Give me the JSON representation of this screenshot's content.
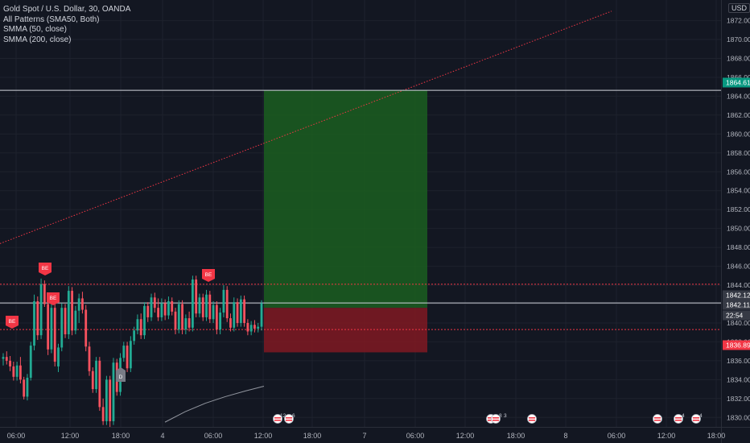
{
  "header": {
    "title": "Gold Spot / U.S. Dollar, 30, OANDA",
    "indicators": [
      "All Patterns (SMA50, Both)",
      "SMMA (50, close)",
      "SMMA (200, close)"
    ],
    "currency": "USD"
  },
  "chart_data": {
    "type": "candlestick",
    "symbol": "Gold Spot / U.S. Dollar",
    "interval": "30",
    "y_ticks": [
      1830,
      1832,
      1834,
      1836,
      1838,
      1840,
      1842,
      1844,
      1846,
      1848,
      1850,
      1852,
      1854,
      1856,
      1858,
      1860,
      1862,
      1864,
      1866,
      1868,
      1870,
      1872
    ],
    "ylim": [
      1828.8,
      1872.3
    ],
    "x_ticks": [
      "06:00",
      "12:00",
      "18:00",
      "4",
      "06:00",
      "12:00",
      "18:00",
      "7",
      "06:00",
      "12:00",
      "18:00",
      "8",
      "06:00",
      "12:00",
      "18:00"
    ],
    "price_labels": [
      {
        "value": "1864.619",
        "color": "#089981"
      },
      {
        "value": "1842.122",
        "color": "#363a45"
      },
      {
        "value": "1842.117",
        "color": "#363a45"
      },
      {
        "value": "22:54",
        "color": "#363a45"
      },
      {
        "value": "1836.890",
        "color": "#f23645"
      }
    ],
    "position": {
      "entry": 1841.6,
      "target": 1864.619,
      "stop": 1836.89,
      "target_color": "#1b5e20",
      "stop_color": "#801922"
    },
    "horizontal_lines": [
      1864.619,
      1842.117
    ],
    "dotted_levels": [
      1844.1,
      1839.3
    ],
    "trendline": {
      "from": 1848.4,
      "to": 1873.0,
      "color": "#f23645"
    },
    "smma200": [
      1829.5,
      1830.6,
      1831.5,
      1832.2,
      1832.8,
      1833.3
    ],
    "pattern_labels": [
      "BE",
      "BE",
      "BE",
      "BE",
      "D"
    ],
    "event_labels": [
      "12",
      "6",
      "8",
      "3",
      "4",
      "4"
    ],
    "candles": [
      [
        1836.2,
        1836.8,
        1835.5,
        1836.4
      ],
      [
        1836.4,
        1837.0,
        1835.6,
        1836.0
      ],
      [
        1836.0,
        1836.5,
        1834.9,
        1835.4
      ],
      [
        1835.4,
        1835.9,
        1833.9,
        1834.3
      ],
      [
        1834.3,
        1835.9,
        1833.9,
        1835.5
      ],
      [
        1835.5,
        1836.4,
        1833.6,
        1834.0
      ],
      [
        1834.0,
        1834.3,
        1831.9,
        1832.2
      ],
      [
        1832.2,
        1834.6,
        1831.8,
        1834.2
      ],
      [
        1834.2,
        1838.0,
        1833.9,
        1837.6
      ],
      [
        1837.6,
        1843.0,
        1837.1,
        1842.3
      ],
      [
        1842.3,
        1842.8,
        1838.2,
        1838.7
      ],
      [
        1838.7,
        1844.7,
        1838.3,
        1844.1
      ],
      [
        1844.1,
        1844.5,
        1841.7,
        1842.0
      ],
      [
        1842.0,
        1842.5,
        1836.6,
        1837.2
      ],
      [
        1837.2,
        1842.2,
        1836.8,
        1841.6
      ],
      [
        1841.6,
        1842.0,
        1835.4,
        1835.9
      ],
      [
        1835.4,
        1837.8,
        1834.8,
        1837.4
      ],
      [
        1837.4,
        1842.1,
        1837.0,
        1841.6
      ],
      [
        1841.6,
        1842.0,
        1838.4,
        1838.8
      ],
      [
        1838.8,
        1843.9,
        1838.3,
        1843.4
      ],
      [
        1843.4,
        1843.8,
        1838.7,
        1839.2
      ],
      [
        1839.2,
        1841.8,
        1838.8,
        1841.3
      ],
      [
        1841.3,
        1843.1,
        1840.0,
        1842.6
      ],
      [
        1842.6,
        1843.3,
        1841.0,
        1841.4
      ],
      [
        1841.4,
        1841.9,
        1837.0,
        1837.5
      ],
      [
        1837.5,
        1838.0,
        1834.4,
        1834.9
      ],
      [
        1834.9,
        1835.3,
        1832.6,
        1833.0
      ],
      [
        1833.0,
        1836.4,
        1832.6,
        1836.0
      ],
      [
        1836.0,
        1836.4,
        1830.7,
        1831.1
      ],
      [
        1831.1,
        1832.0,
        1829.2,
        1829.6
      ],
      [
        1829.6,
        1834.4,
        1829.2,
        1834.0
      ],
      [
        1834.0,
        1834.4,
        1829.0,
        1829.6
      ],
      [
        1829.6,
        1836.3,
        1829.2,
        1835.8
      ],
      [
        1835.8,
        1836.2,
        1832.3,
        1832.7
      ],
      [
        1832.7,
        1836.8,
        1832.3,
        1836.3
      ],
      [
        1836.3,
        1838.0,
        1835.9,
        1837.6
      ],
      [
        1837.6,
        1838.0,
        1834.8,
        1835.2
      ],
      [
        1835.2,
        1838.6,
        1834.8,
        1838.1
      ],
      [
        1838.1,
        1839.6,
        1837.7,
        1839.2
      ],
      [
        1839.2,
        1840.9,
        1838.8,
        1840.4
      ],
      [
        1840.4,
        1841.0,
        1838.3,
        1838.7
      ],
      [
        1838.7,
        1842.2,
        1838.3,
        1841.8
      ],
      [
        1841.8,
        1842.2,
        1840.1,
        1840.6
      ],
      [
        1840.6,
        1843.1,
        1840.2,
        1842.7
      ],
      [
        1842.7,
        1843.2,
        1841.1,
        1841.6
      ],
      [
        1841.6,
        1842.6,
        1840.2,
        1840.6
      ],
      [
        1840.6,
        1842.6,
        1840.2,
        1842.1
      ],
      [
        1842.1,
        1842.5,
        1840.3,
        1840.8
      ],
      [
        1840.8,
        1842.8,
        1840.4,
        1842.3
      ],
      [
        1842.3,
        1842.7,
        1840.8,
        1841.2
      ],
      [
        1841.2,
        1841.6,
        1838.8,
        1839.3
      ],
      [
        1839.3,
        1842.4,
        1838.9,
        1842.0
      ],
      [
        1842.0,
        1842.4,
        1838.8,
        1839.3
      ],
      [
        1839.3,
        1840.9,
        1838.8,
        1840.5
      ],
      [
        1840.5,
        1841.2,
        1839.1,
        1839.5
      ],
      [
        1839.5,
        1845.0,
        1839.1,
        1844.6
      ],
      [
        1844.6,
        1845.0,
        1840.6,
        1841.0
      ],
      [
        1841.0,
        1843.1,
        1840.6,
        1842.7
      ],
      [
        1842.7,
        1843.1,
        1840.2,
        1840.6
      ],
      [
        1840.6,
        1843.5,
        1840.2,
        1843.0
      ],
      [
        1843.0,
        1843.4,
        1840.0,
        1840.4
      ],
      [
        1840.4,
        1842.3,
        1840.0,
        1841.9
      ],
      [
        1841.9,
        1842.3,
        1838.8,
        1839.3
      ],
      [
        1839.3,
        1841.6,
        1838.8,
        1841.1
      ],
      [
        1841.1,
        1844.0,
        1840.6,
        1843.5
      ],
      [
        1843.5,
        1843.9,
        1840.1,
        1840.5
      ],
      [
        1840.5,
        1841.0,
        1839.1,
        1839.5
      ],
      [
        1839.5,
        1842.7,
        1839.1,
        1842.2
      ],
      [
        1842.2,
        1842.6,
        1839.6,
        1840.0
      ],
      [
        1840.0,
        1842.9,
        1839.6,
        1842.5
      ],
      [
        1842.5,
        1842.9,
        1839.6,
        1840.0
      ],
      [
        1840.0,
        1840.4,
        1838.7,
        1839.1
      ],
      [
        1839.1,
        1840.2,
        1838.7,
        1839.8
      ],
      [
        1839.8,
        1840.3,
        1839.0,
        1839.4
      ],
      [
        1839.4,
        1840.0,
        1839.0,
        1839.6
      ],
      [
        1839.6,
        1842.4,
        1839.2,
        1842.1
      ]
    ]
  }
}
